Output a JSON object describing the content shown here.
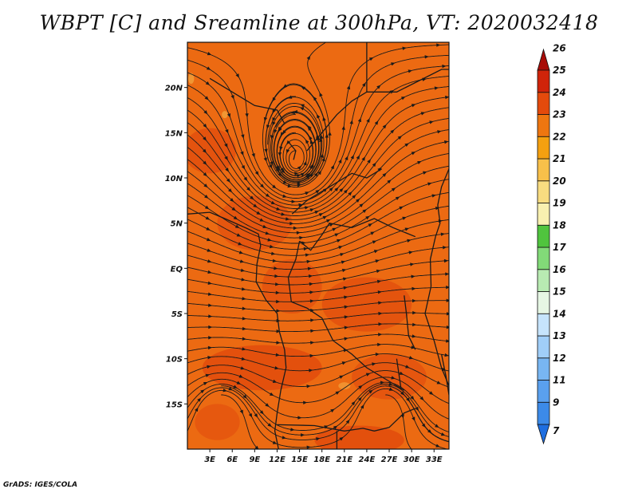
{
  "title": "WBPT [C] and Sreamline at 300hPa, VT: 2020032418",
  "credit": "GrADS: IGES/COLA",
  "map": {
    "lon_range": [
      0,
      35
    ],
    "lat_range": [
      -20,
      25
    ],
    "lat_ticks": [
      {
        "value": 20,
        "label": "20N"
      },
      {
        "value": 15,
        "label": "15N"
      },
      {
        "value": 10,
        "label": "10N"
      },
      {
        "value": 5,
        "label": "5N"
      },
      {
        "value": 0,
        "label": "EQ"
      },
      {
        "value": -5,
        "label": "5S"
      },
      {
        "value": -10,
        "label": "10S"
      },
      {
        "value": -15,
        "label": "15S"
      }
    ],
    "lon_ticks": [
      {
        "value": 3,
        "label": "3E"
      },
      {
        "value": 6,
        "label": "6E"
      },
      {
        "value": 9,
        "label": "9E"
      },
      {
        "value": 12,
        "label": "12E"
      },
      {
        "value": 15,
        "label": "15E"
      },
      {
        "value": 18,
        "label": "18E"
      },
      {
        "value": 21,
        "label": "21E"
      },
      {
        "value": 24,
        "label": "24E"
      },
      {
        "value": 27,
        "label": "27E"
      },
      {
        "value": 30,
        "label": "30E"
      },
      {
        "value": 33,
        "label": "33E"
      }
    ],
    "base_color": "#ec6a12",
    "shade_color": "#e0460c",
    "highlight_color": "#f3a23c",
    "line_color": "#1a1a1a"
  },
  "colorbar": {
    "levels": [
      "7",
      "9",
      "11",
      "12",
      "13",
      "14",
      "15",
      "16",
      "17",
      "18",
      "19",
      "20",
      "21",
      "22",
      "23",
      "24",
      "25",
      "26"
    ],
    "colors": [
      "#1e6ee0",
      "#3c8ae8",
      "#5aa0ee",
      "#78b6f2",
      "#a0cef8",
      "#c6e4fc",
      "#e6f6e4",
      "#b8eab2",
      "#82da78",
      "#50c43e",
      "#f8f0b0",
      "#f8dc80",
      "#f8c04a",
      "#f4a010",
      "#ee7610",
      "#e44a0c",
      "#d0240a",
      "#a80c08"
    ]
  }
}
